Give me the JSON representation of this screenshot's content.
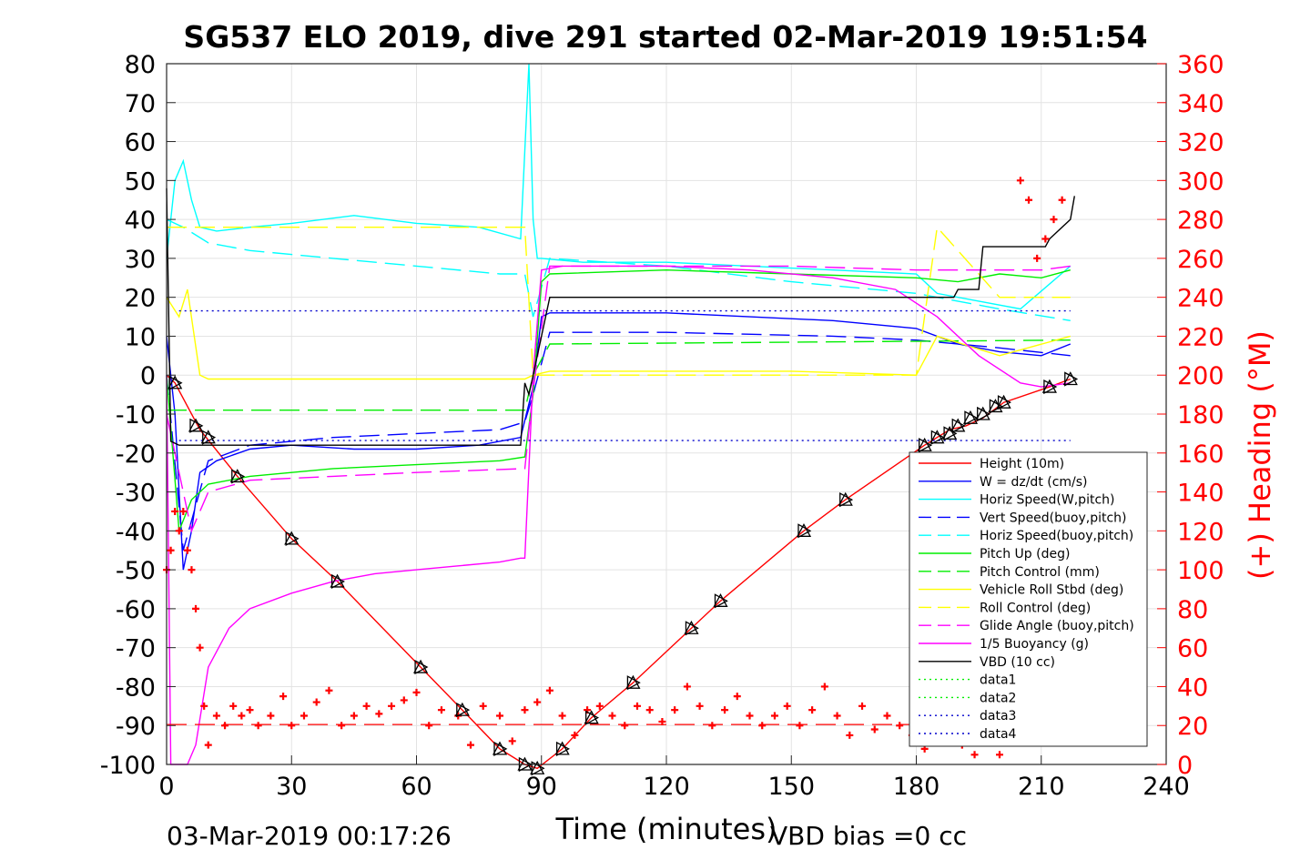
{
  "chart_data": {
    "type": "line",
    "title": "SG537 ELO 2019, dive 291 started 02-Mar-2019 19:51:54",
    "xlabel": "Time (minutes)",
    "ylabel": "",
    "y2label": "(+) Heading (°M)",
    "xlim": [
      0,
      240
    ],
    "ylim": [
      -100,
      80
    ],
    "y2lim": [
      0,
      360
    ],
    "grid": true,
    "legend_position": "lower-right",
    "x_ticks": [
      "0",
      "30",
      "60",
      "90",
      "120",
      "150",
      "180",
      "210",
      "240"
    ],
    "y_ticks": [
      "80",
      "70",
      "60",
      "50",
      "40",
      "30",
      "20",
      "10",
      "0",
      "-10",
      "-20",
      "-30",
      "-40",
      "-50",
      "-60",
      "-70",
      "-80",
      "-90",
      "-100"
    ],
    "y2_ticks": [
      "360",
      "340",
      "320",
      "300",
      "280",
      "260",
      "240",
      "220",
      "200",
      "180",
      "160",
      "140",
      "120",
      "100",
      "80",
      "60",
      "40",
      "20",
      "0"
    ],
    "footer_left": "03-Mar-2019 00:17:26",
    "footer_right": "VBD bias =0 cc",
    "series": [
      {
        "name": "Height (10m)",
        "color": "#ff0000",
        "dash": "",
        "x": [
          0,
          2,
          8,
          17,
          30,
          41,
          61,
          71,
          80,
          86,
          89,
          95,
          102,
          112,
          126,
          133,
          153,
          163,
          182,
          188,
          192,
          196,
          201,
          212,
          217
        ],
        "y": [
          0,
          -2,
          -14,
          -26,
          -42,
          -53,
          -75,
          -86,
          -96,
          -100,
          -101,
          -96,
          -88,
          -79,
          -65,
          -58,
          -40,
          -32,
          -18,
          -14,
          -13,
          -11,
          -7,
          -3,
          -1
        ]
      },
      {
        "name": "W = dz/dt (cm/s)",
        "color": "#0000ff",
        "dash": "",
        "x": [
          0,
          2,
          4,
          6,
          8,
          12,
          20,
          30,
          45,
          60,
          75,
          85,
          88,
          90,
          92,
          100,
          120,
          140,
          160,
          180,
          190,
          200,
          210,
          217
        ],
        "y": [
          10,
          -10,
          -50,
          -40,
          -25,
          -22,
          -19,
          -18,
          -19,
          -19,
          -18,
          -16,
          -3,
          15,
          16,
          16,
          16,
          15,
          14,
          12,
          8,
          6,
          5,
          8
        ]
      },
      {
        "name": "Horiz Speed(W,pitch)",
        "color": "#00ffff",
        "dash": "",
        "x": [
          0,
          2,
          4,
          6,
          8,
          12,
          20,
          30,
          45,
          60,
          75,
          85,
          87,
          88,
          89,
          90,
          100,
          120,
          140,
          160,
          180,
          185,
          195,
          205,
          217
        ],
        "y": [
          30,
          50,
          55,
          45,
          38,
          37,
          38,
          39,
          41,
          39,
          38,
          35,
          80,
          40,
          30,
          30,
          29,
          29,
          28,
          27,
          26,
          21,
          19,
          17,
          28
        ]
      },
      {
        "name": "Vert Speed(buoy,pitch)",
        "color": "#0000ff",
        "dash": "22,9",
        "x": [
          0,
          4,
          10,
          20,
          40,
          60,
          80,
          86,
          88,
          92,
          120,
          160,
          180,
          200,
          217
        ],
        "y": [
          0,
          -45,
          -22,
          -18,
          -16,
          -15,
          -14,
          -12,
          -5,
          11,
          11,
          10,
          9,
          7,
          5
        ]
      },
      {
        "name": "Horiz Speed(buoy,pitch)",
        "color": "#00ffff",
        "dash": "22,9",
        "x": [
          0,
          4,
          10,
          20,
          40,
          60,
          80,
          86,
          88,
          92,
          120,
          150,
          180,
          200,
          217
        ],
        "y": [
          40,
          38,
          34,
          32,
          30,
          28,
          26,
          26,
          15,
          30,
          28,
          24,
          21,
          17,
          14
        ]
      },
      {
        "name": "Pitch Up (deg)",
        "color": "#00ee00",
        "dash": "",
        "x": [
          0,
          3,
          6,
          10,
          20,
          40,
          60,
          80,
          86,
          88,
          90,
          92,
          120,
          150,
          180,
          190,
          200,
          210,
          217
        ],
        "y": [
          0,
          -40,
          -32,
          -28,
          -26,
          -24,
          -23,
          -22,
          -21,
          -5,
          24,
          26,
          27,
          26,
          25,
          24,
          26,
          25,
          27
        ]
      },
      {
        "name": "Pitch Control (mm)",
        "color": "#00ee00",
        "dash": "22,9",
        "x": [
          0,
          10,
          86,
          88,
          92,
          217
        ],
        "y": [
          -9,
          -9,
          -9,
          0,
          8,
          9
        ]
      },
      {
        "name": "Vehicle Roll Stbd (deg)",
        "color": "#ffff00",
        "dash": "",
        "x": [
          0,
          3,
          5,
          8,
          10,
          30,
          60,
          86,
          88,
          92,
          120,
          150,
          180,
          185,
          200,
          217
        ],
        "y": [
          20,
          15,
          22,
          0,
          -1,
          -1,
          -1,
          -1,
          0,
          1,
          1,
          1,
          0,
          10,
          5,
          10
        ]
      },
      {
        "name": "Roll Control (deg)",
        "color": "#ffff00",
        "dash": "22,9",
        "x": [
          0,
          8,
          20,
          50,
          86,
          88,
          92,
          150,
          180,
          185,
          200,
          210,
          217
        ],
        "y": [
          38,
          38,
          38,
          38,
          38,
          0,
          0,
          0,
          0,
          38,
          20,
          20,
          20
        ]
      },
      {
        "name": "Glide Angle (buoy,pitch)",
        "color": "#ff00ff",
        "dash": "22,9",
        "x": [
          0,
          6,
          10,
          20,
          40,
          60,
          86,
          88,
          92,
          120,
          150,
          180,
          200,
          210,
          217
        ],
        "y": [
          -10,
          -40,
          -30,
          -27,
          -26,
          -25,
          -24,
          -4,
          28,
          28,
          28,
          27,
          27,
          27,
          28
        ]
      },
      {
        "name": "1/5 Buoyancy (g)",
        "color": "#ff00ff",
        "dash": "",
        "x": [
          0,
          1,
          3,
          5,
          7,
          10,
          15,
          20,
          30,
          40,
          50,
          60,
          70,
          80,
          85,
          86,
          88,
          90,
          95,
          120,
          140,
          160,
          175,
          185,
          195,
          205,
          210,
          217
        ],
        "y": [
          0,
          -100,
          -100,
          -100,
          -95,
          -75,
          -65,
          -60,
          -56,
          -53,
          -51,
          -50,
          -49,
          -48,
          -47,
          -47,
          0,
          27,
          28,
          28,
          27,
          25,
          22,
          15,
          5,
          -2,
          -3,
          -2
        ]
      },
      {
        "name": "VBD (10 cc)",
        "color": "#000000",
        "dash": "",
        "x": [
          0,
          1,
          3,
          85,
          86,
          87,
          90,
          92,
          180,
          189,
          190,
          195,
          196,
          200,
          211,
          212,
          217,
          218
        ],
        "y": [
          48,
          -17,
          -18,
          -18,
          -2,
          -5,
          10,
          20,
          20,
          20,
          22,
          22,
          33,
          33,
          33,
          35,
          40,
          46
        ]
      },
      {
        "name": "data1",
        "color": "#00ee00",
        "dash": "2,4",
        "x": [
          0,
          0
        ],
        "y": [
          0,
          0
        ]
      },
      {
        "name": "data2",
        "color": "#00ee00",
        "dash": "2,4",
        "x": [
          0,
          0
        ],
        "y": [
          0,
          0
        ]
      },
      {
        "name": "data3",
        "color": "#0000cc",
        "dash": "2,4",
        "x": [
          3,
          217
        ],
        "y": [
          16.5,
          16.5
        ]
      },
      {
        "name": "data4",
        "color": "#0000cc",
        "dash": "2,4",
        "x": [
          3,
          217
        ],
        "y": [
          -16.8,
          -16.8
        ]
      }
    ],
    "heading": {
      "axis": "right",
      "color": "#ff0000",
      "marker": "+",
      "x": [
        0,
        1,
        2,
        3,
        4,
        5,
        6,
        7,
        8,
        9,
        10,
        12,
        14,
        16,
        18,
        20,
        22,
        25,
        28,
        30,
        33,
        36,
        39,
        42,
        45,
        48,
        51,
        54,
        57,
        60,
        63,
        66,
        70,
        73,
        76,
        80,
        83,
        86,
        89,
        92,
        95,
        98,
        101,
        104,
        107,
        110,
        113,
        116,
        119,
        122,
        125,
        128,
        131,
        134,
        137,
        140,
        143,
        146,
        149,
        152,
        155,
        158,
        161,
        164,
        167,
        170,
        173,
        176,
        179,
        182,
        185,
        188,
        191,
        194,
        197,
        200,
        203,
        205,
        207,
        209,
        211,
        213,
        215
      ],
      "y": [
        100,
        110,
        130,
        120,
        130,
        110,
        100,
        80,
        60,
        30,
        10,
        25,
        20,
        30,
        25,
        28,
        20,
        25,
        35,
        20,
        25,
        32,
        38,
        20,
        25,
        30,
        26,
        30,
        33,
        37,
        20,
        28,
        25,
        10,
        30,
        25,
        12,
        28,
        32,
        38,
        25,
        15,
        28,
        30,
        25,
        20,
        30,
        28,
        22,
        28,
        40,
        30,
        20,
        28,
        35,
        25,
        20,
        25,
        30,
        20,
        28,
        40,
        25,
        15,
        30,
        18,
        25,
        20,
        15,
        8,
        20,
        15,
        10,
        5,
        12,
        5,
        20,
        300,
        290,
        260,
        270,
        280,
        290
      ]
    },
    "heading_reference": {
      "value": 20.5,
      "axis": "right",
      "color": "#ff0000",
      "dash": "22,9"
    },
    "markers": {
      "symbols": "triangles",
      "x": [
        2,
        7,
        10,
        17,
        30,
        41,
        61,
        71,
        80,
        86,
        89,
        95,
        102,
        112,
        126,
        133,
        153,
        163,
        182,
        185,
        188,
        190,
        193,
        196,
        199,
        201,
        212,
        217
      ],
      "y": [
        -2,
        -13,
        -16,
        -26,
        -42,
        -53,
        -75,
        -86,
        -96,
        -100,
        -101,
        -96,
        -88,
        -79,
        -65,
        -58,
        -40,
        -32,
        -18,
        -16,
        -15,
        -13,
        -11,
        -10,
        -8,
        -7,
        -3,
        -1
      ]
    }
  }
}
